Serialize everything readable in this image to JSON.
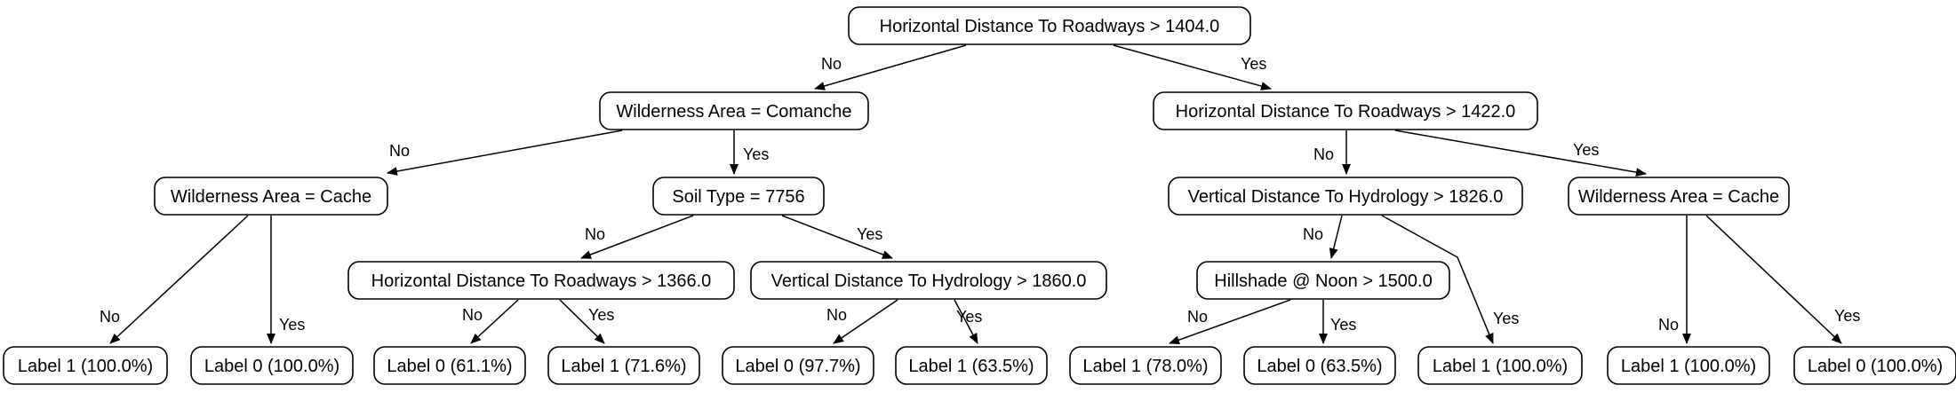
{
  "nodes": {
    "n1": "Horizontal Distance To Roadways > 1404.0",
    "n2": "Wilderness Area = Comanche",
    "n3": "Horizontal Distance To Roadways > 1422.0",
    "n4": "Wilderness Area = Cache",
    "n5": "Soil Type = 7756",
    "n6": "Vertical Distance To Hydrology > 1826.0",
    "n7": "Wilderness Area = Cache",
    "n8": "Horizontal Distance To Roadways > 1366.0",
    "n9": "Vertical Distance To Hydrology > 1860.0",
    "n10": "Hillshade @ Noon > 1500.0",
    "l1": "Label 1 (100.0%)",
    "l2": "Label 0 (100.0%)",
    "l3": "Label 0 (61.1%)",
    "l4": "Label 1 (71.6%)",
    "l5": "Label 0 (97.7%)",
    "l6": "Label 1 (63.5%)",
    "l7": "Label 1 (78.0%)",
    "l8": "Label 0 (63.5%)",
    "l9": "Label 1 (100.0%)",
    "l10": "Label 1 (100.0%)",
    "l11": "Label 0 (100.0%)"
  },
  "edges": [
    {
      "from": "n1",
      "to": "n2",
      "label": "No"
    },
    {
      "from": "n1",
      "to": "n3",
      "label": "Yes"
    },
    {
      "from": "n2",
      "to": "n4",
      "label": "No"
    },
    {
      "from": "n2",
      "to": "n5",
      "label": "Yes"
    },
    {
      "from": "n3",
      "to": "n6",
      "label": "No"
    },
    {
      "from": "n3",
      "to": "n7",
      "label": "Yes"
    },
    {
      "from": "n4",
      "to": "l1",
      "label": "No"
    },
    {
      "from": "n4",
      "to": "l2",
      "label": "Yes"
    },
    {
      "from": "n5",
      "to": "n8",
      "label": "No"
    },
    {
      "from": "n5",
      "to": "n9",
      "label": "Yes"
    },
    {
      "from": "n8",
      "to": "l3",
      "label": "No"
    },
    {
      "from": "n8",
      "to": "l4",
      "label": "Yes"
    },
    {
      "from": "n9",
      "to": "l5",
      "label": "No"
    },
    {
      "from": "n9",
      "to": "l6",
      "label": "Yes"
    },
    {
      "from": "n6",
      "to": "n10",
      "label": "No"
    },
    {
      "from": "n6",
      "to": "l9",
      "label": "Yes"
    },
    {
      "from": "n10",
      "to": "l7",
      "label": "No"
    },
    {
      "from": "n10",
      "to": "l8",
      "label": "Yes"
    },
    {
      "from": "n7",
      "to": "l10",
      "label": "No"
    },
    {
      "from": "n7",
      "to": "l11",
      "label": "Yes"
    }
  ]
}
